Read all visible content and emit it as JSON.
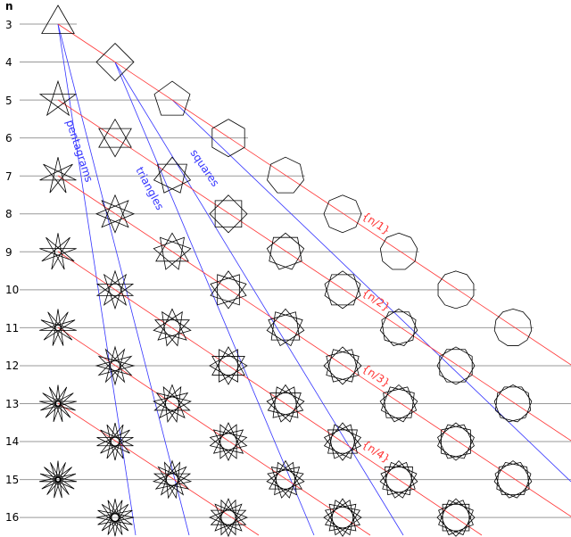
{
  "n_header": "n",
  "rows": [
    {
      "label": "3"
    },
    {
      "label": "4"
    },
    {
      "label": "5"
    },
    {
      "label": "6"
    },
    {
      "label": "7"
    },
    {
      "label": "8"
    },
    {
      "label": "9"
    },
    {
      "label": "10"
    },
    {
      "label": "11"
    },
    {
      "label": "12"
    },
    {
      "label": "13"
    },
    {
      "label": "14"
    },
    {
      "label": "15"
    },
    {
      "label": "16"
    }
  ],
  "blue_labels": {
    "pentagrams": "pentagrams",
    "triangles": "triangles",
    "squares": "squares"
  },
  "red_labels": {
    "n1": "{n/1}",
    "n2": "{n/2}",
    "n3": "{n/3}",
    "n4": "{n/4}"
  },
  "colors": {
    "blue_line": "#3333ff",
    "red_line": "#ff3333",
    "grid_line": "#999999",
    "shape_stroke": "#000000"
  }
}
